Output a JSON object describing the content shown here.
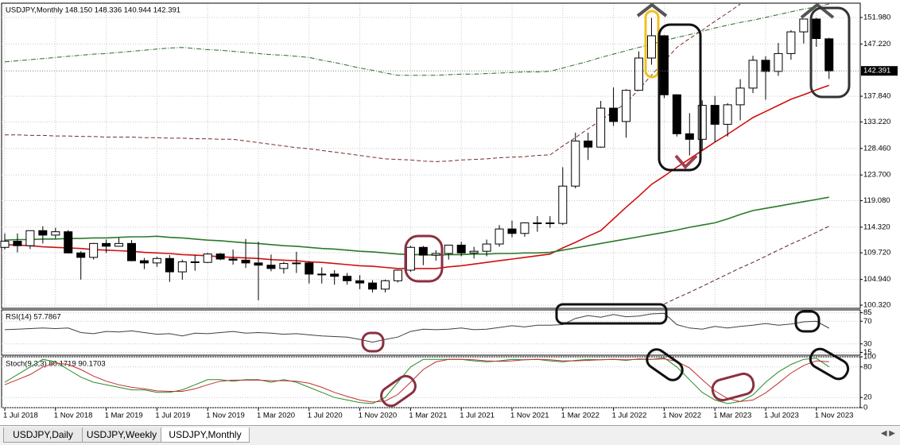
{
  "chart_data": [
    {
      "type": "candlestick",
      "title": "USDJPY,Monthly  148.150 148.336 140.944 142.391",
      "open": [
        110.7,
        111.8,
        111.0,
        113.7,
        112.9,
        113.5,
        109.7,
        108.9,
        111.4,
        110.9,
        111.4,
        108.3,
        107.9,
        108.7,
        106.3,
        108.1,
        108.0,
        109.5,
        108.6,
        108.4,
        107.9,
        107.5,
        106.9,
        107.8,
        107.9,
        105.9,
        105.9,
        105.5,
        104.7,
        104.3,
        103.2,
        104.7,
        106.6,
        110.7,
        109.3,
        109.6,
        111.1,
        109.7,
        110.0,
        111.3,
        114.0,
        113.2,
        115.1,
        115.1,
        115.0,
        121.7,
        129.8,
        128.7,
        135.7,
        133.3,
        138.9,
        144.7,
        148.7,
        138.1,
        131.1,
        130.1,
        136.2,
        132.8,
        136.3,
        139.3,
        144.3,
        142.3,
        145.5,
        149.4,
        151.7,
        148.15
      ],
      "high": [
        113.2,
        113.2,
        113.7,
        114.5,
        114.2,
        113.8,
        110.0,
        111.5,
        112.1,
        112.4,
        112.0,
        108.8,
        109.0,
        109.3,
        108.5,
        109.3,
        109.7,
        109.7,
        110.3,
        112.2,
        111.7,
        109.4,
        108.1,
        109.9,
        108.2,
        107.1,
        106.6,
        106.1,
        105.7,
        104.8,
        104.9,
        106.7,
        111.0,
        110.96,
        110.2,
        111.1,
        111.7,
        110.8,
        112.1,
        114.7,
        115.5,
        115.2,
        116.3,
        116.3,
        125.1,
        131.3,
        131.3,
        137.0,
        139.4,
        139.1,
        145.9,
        151.9,
        148.8,
        138.2,
        134.8,
        137.1,
        137.9,
        136.6,
        140.9,
        145.1,
        145.0,
        147.4,
        149.7,
        151.7,
        151.9,
        148.336
      ],
      "low": [
        110.3,
        109.8,
        110.4,
        111.4,
        112.3,
        109.6,
        104.9,
        108.5,
        109.7,
        110.8,
        108.2,
        106.8,
        107.2,
        104.5,
        104.9,
        106.5,
        107.9,
        108.4,
        107.6,
        107.0,
        101.2,
        106.4,
        106.0,
        106.1,
        104.2,
        104.2,
        104.0,
        104.0,
        103.2,
        102.6,
        102.6,
        104.4,
        106.3,
        107.5,
        108.3,
        108.5,
        109.1,
        108.7,
        109.1,
        110.8,
        112.5,
        112.6,
        113.5,
        114.2,
        114.7,
        121.3,
        126.4,
        128.6,
        132.5,
        130.4,
        138.8,
        143.5,
        137.5,
        130.6,
        127.2,
        128.1,
        129.6,
        130.6,
        133.5,
        138.4,
        137.2,
        141.5,
        144.4,
        147.3,
        146.7,
        140.944
      ],
      "close": [
        111.8,
        111.0,
        113.7,
        112.9,
        113.5,
        109.7,
        108.9,
        111.4,
        110.9,
        111.4,
        108.3,
        107.9,
        108.7,
        106.3,
        108.1,
        108.0,
        109.5,
        108.6,
        108.4,
        107.9,
        107.5,
        106.9,
        107.8,
        107.9,
        105.9,
        105.9,
        105.5,
        104.7,
        104.3,
        103.2,
        104.7,
        106.6,
        110.7,
        109.3,
        109.6,
        111.1,
        109.7,
        110.0,
        111.3,
        114.0,
        113.2,
        115.1,
        115.1,
        115.0,
        121.7,
        129.8,
        128.7,
        135.7,
        133.3,
        138.9,
        144.7,
        148.7,
        138.1,
        131.1,
        130.1,
        136.2,
        132.8,
        136.3,
        139.3,
        144.3,
        142.3,
        145.5,
        149.4,
        151.7,
        148.2,
        142.391
      ],
      "series": [
        {
          "color": "#d01010",
          "style": "solid",
          "values": [
            111.2,
            111.1,
            111.0,
            110.8,
            110.7,
            110.6,
            110.5,
            110.3,
            110.2,
            110.1,
            110.0,
            109.8,
            109.7,
            109.6,
            109.4,
            109.3,
            109.2,
            109.0,
            108.9,
            108.8,
            108.7,
            108.5,
            108.4,
            108.3,
            108.1,
            108.0,
            107.8,
            107.6,
            107.4,
            107.3,
            107.1,
            106.9,
            106.9,
            106.9,
            106.9,
            107.2,
            107.4,
            107.7,
            108.0,
            108.3,
            108.6,
            108.9,
            109.2,
            109.5,
            110.6,
            111.6,
            112.7,
            113.7,
            115.8,
            117.9,
            119.9,
            122.0,
            123.5,
            125.1,
            126.6,
            128.1,
            129.6,
            131.0,
            132.5,
            134.0,
            135.1,
            136.2,
            137.3,
            138.1,
            139.0,
            139.8
          ]
        },
        {
          "color": "#2a7a2a",
          "style": "solid",
          "values": [
            112.0,
            112.1,
            112.1,
            112.2,
            112.2,
            112.3,
            112.3,
            112.4,
            112.4,
            112.5,
            112.6,
            112.6,
            112.7,
            112.5,
            112.4,
            112.2,
            112.0,
            111.9,
            111.7,
            111.5,
            111.4,
            111.2,
            111.0,
            110.9,
            110.7,
            110.5,
            110.4,
            110.2,
            110.0,
            109.9,
            109.7,
            109.5,
            109.4,
            109.4,
            109.3,
            109.4,
            109.4,
            109.5,
            109.5,
            109.6,
            109.6,
            109.7,
            109.7,
            109.8,
            110.2,
            110.6,
            111.0,
            111.4,
            111.8,
            112.2,
            112.6,
            113.0,
            113.4,
            113.8,
            114.3,
            114.7,
            115.1,
            115.8,
            116.6,
            117.3,
            117.7,
            118.1,
            118.5,
            118.9,
            119.3,
            119.7
          ]
        },
        {
          "color": "#2a6a2a",
          "style": "dashdot",
          "values": [
            144.0,
            144.2,
            144.4,
            144.6,
            144.8,
            145.0,
            145.2,
            145.4,
            145.5,
            145.7,
            145.9,
            146.1,
            146.3,
            146.5,
            146.6,
            146.4,
            146.2,
            146.1,
            145.9,
            145.7,
            145.5,
            145.3,
            145.2,
            145.0,
            144.8,
            144.3,
            143.9,
            143.4,
            142.9,
            142.5,
            142.0,
            141.6,
            141.6,
            141.6,
            141.6,
            141.7,
            141.8,
            141.8,
            141.9,
            142.0,
            142.1,
            142.2,
            142.2,
            142.3,
            142.9,
            143.5,
            144.1,
            144.8,
            145.4,
            146.0,
            146.6,
            147.2,
            147.8,
            148.4,
            148.9,
            149.5,
            150.1,
            150.6,
            151.1,
            151.5,
            152.0,
            152.5,
            153.0,
            153.5,
            153.9,
            154.4
          ]
        },
        {
          "color": "#7a2a2a",
          "style": "dashed",
          "values": [
            130.9,
            130.9,
            130.8,
            130.8,
            130.7,
            130.7,
            130.6,
            130.6,
            130.5,
            130.5,
            130.5,
            130.4,
            130.4,
            130.3,
            130.3,
            130.2,
            130.2,
            130.1,
            130.1,
            129.8,
            129.5,
            129.2,
            128.9,
            128.6,
            128.4,
            128.1,
            127.8,
            127.5,
            127.2,
            126.9,
            126.6,
            126.5,
            126.4,
            126.2,
            126.1,
            126.2,
            126.4,
            126.5,
            126.6,
            126.8,
            126.9,
            127.0,
            127.2,
            127.3,
            128.9,
            130.4,
            132.0,
            133.5,
            135.1,
            136.6,
            139.1,
            141.6,
            144.1,
            146.6,
            148.2,
            149.7,
            151.3,
            152.8,
            154.4,
            null,
            null,
            null,
            null,
            null,
            null,
            null
          ]
        },
        {
          "color": "#5a2020",
          "style": "dashed",
          "values": [
            null,
            null,
            null,
            null,
            null,
            null,
            null,
            null,
            null,
            null,
            null,
            null,
            null,
            null,
            null,
            null,
            null,
            null,
            null,
            null,
            null,
            null,
            null,
            null,
            null,
            null,
            null,
            null,
            null,
            null,
            null,
            null,
            null,
            null,
            null,
            null,
            null,
            null,
            null,
            null,
            null,
            null,
            null,
            null,
            null,
            null,
            null,
            null,
            null,
            null,
            null,
            null,
            100.5,
            101.6,
            102.6,
            103.7,
            104.8,
            105.9,
            107.0,
            108.0,
            109.1,
            110.2,
            111.3,
            112.3,
            113.4,
            114.5
          ]
        }
      ],
      "price_label": 142.391,
      "ylim": [
        99.75,
        154.55
      ],
      "yticks": [
        {
          "value": 151.98,
          "label": "151.980"
        },
        {
          "value": 147.22,
          "label": "147.220"
        },
        {
          "value": 137.84,
          "label": "137.840"
        },
        {
          "value": 133.22,
          "label": "133.220"
        },
        {
          "value": 128.46,
          "label": "128.460"
        },
        {
          "value": 123.7,
          "label": "123.700"
        },
        {
          "value": 119.08,
          "label": "119.080"
        },
        {
          "value": 114.32,
          "label": "114.320"
        },
        {
          "value": 109.72,
          "label": "109.720"
        },
        {
          "value": 104.94,
          "label": "104.940"
        },
        {
          "value": 100.32,
          "label": "100.320"
        }
      ],
      "grid": true
    },
    {
      "type": "line",
      "title": "RSI(14) 57.7867",
      "series": [
        {
          "color": "#404040",
          "style": "solid",
          "values": [
            55,
            56,
            57,
            58,
            57,
            58,
            50,
            48,
            52,
            51,
            53,
            50,
            47,
            48,
            44,
            49,
            48,
            50,
            52,
            49,
            50,
            49,
            47,
            48,
            46,
            44,
            43,
            42,
            38,
            33,
            38,
            42,
            52,
            56,
            55,
            56,
            58,
            55,
            56,
            59,
            62,
            60,
            63,
            63,
            64,
            75,
            80,
            77,
            82,
            78,
            79,
            83,
            84,
            64,
            58,
            56,
            61,
            58,
            61,
            63,
            66,
            63,
            65,
            69,
            70,
            57.7867
          ]
        }
      ],
      "ylim": [
        10,
        90
      ],
      "yticks": [
        85,
        70,
        30,
        15
      ]
    },
    {
      "type": "line",
      "title": "Stoch(9,3,3) 80.1719 90.1703",
      "categories": [
        "1 Jul 2018",
        null,
        null,
        null,
        "1 Nov 2018",
        null,
        null,
        null,
        "1 Mar 2019",
        null,
        null,
        null,
        "1 Jul 2019",
        null,
        null,
        null,
        "1 Nov 2019",
        null,
        null,
        null,
        "1 Mar 2020",
        null,
        null,
        null,
        "1 Jul 2020",
        null,
        null,
        null,
        "1 Nov 2020",
        null,
        null,
        null,
        "1 Mar 2021",
        null,
        null,
        null,
        "1 Jul 2021",
        null,
        null,
        null,
        "1 Nov 2021",
        null,
        null,
        null,
        "1 Mar 2022",
        null,
        null,
        null,
        "1 Jul 2022",
        null,
        null,
        null,
        "1 Nov 2022",
        null,
        null,
        null,
        "1 Mar 2023",
        null,
        null,
        null,
        "1 Jul 2023",
        null,
        null,
        null,
        "1 Nov 2023",
        null
      ],
      "series": [
        {
          "color": "#2a8a2a",
          "style": "solid",
          "values": [
            50,
            65,
            80,
            95,
            90,
            75,
            60,
            50,
            45,
            40,
            35,
            35,
            30,
            30,
            35,
            45,
            55,
            55,
            52,
            55,
            55,
            50,
            55,
            50,
            40,
            30,
            20,
            15,
            10,
            8,
            20,
            50,
            80,
            95,
            95,
            95,
            95,
            92,
            90,
            92,
            95,
            94,
            95,
            92,
            90,
            93,
            95,
            94,
            95,
            93,
            96,
            95,
            98,
            80,
            55,
            30,
            15,
            8,
            12,
            25,
            50,
            70,
            85,
            95,
            97,
            80.1719
          ]
        },
        {
          "color": "#c03030",
          "style": "solid",
          "values": [
            45,
            55,
            65,
            80,
            88,
            85,
            75,
            62,
            52,
            45,
            40,
            37,
            33,
            32,
            32,
            37,
            45,
            52,
            54,
            54,
            54,
            53,
            53,
            52,
            48,
            40,
            30,
            22,
            15,
            11,
            13,
            26,
            50,
            75,
            90,
            95,
            95,
            94,
            92,
            91,
            92,
            94,
            95,
            94,
            92,
            92,
            93,
            94,
            95,
            94,
            95,
            95,
            96,
            91,
            78,
            55,
            33,
            18,
            12,
            15,
            29,
            48,
            68,
            83,
            92,
            90.1703
          ]
        }
      ],
      "ylim": [
        0,
        100
      ],
      "yticks": [
        100,
        80,
        20,
        0
      ]
    }
  ],
  "tabs": [
    "USDJPY,Daily",
    "USDJPY,Weekly",
    "USDJPY,Monthly"
  ]
}
